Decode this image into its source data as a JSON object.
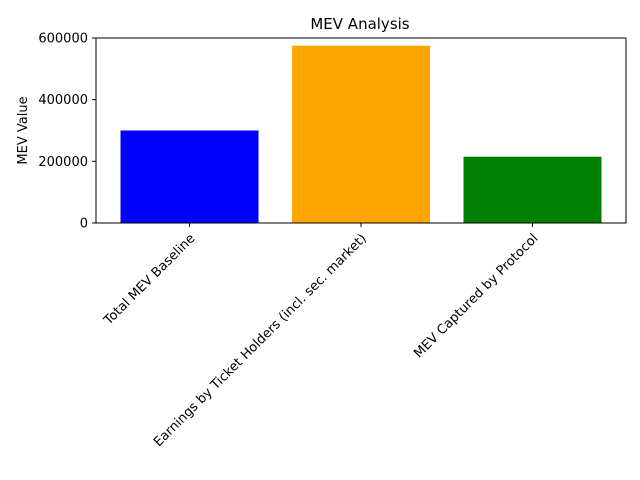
{
  "chart_data": {
    "type": "bar",
    "title": "MEV Analysis",
    "xlabel": "",
    "ylabel": "MEV Value",
    "ylim": [
      0,
      600000
    ],
    "yticks": [
      0,
      200000,
      400000,
      600000
    ],
    "grid": false,
    "categories": [
      "Total MEV Baseline",
      "Earnings by Ticket Holders (incl. sec. market)",
      "MEV Captured by Protocol"
    ],
    "values": [
      300000,
      575000,
      215000
    ],
    "colors": [
      "#0000ff",
      "#ffa500",
      "#008000"
    ]
  }
}
